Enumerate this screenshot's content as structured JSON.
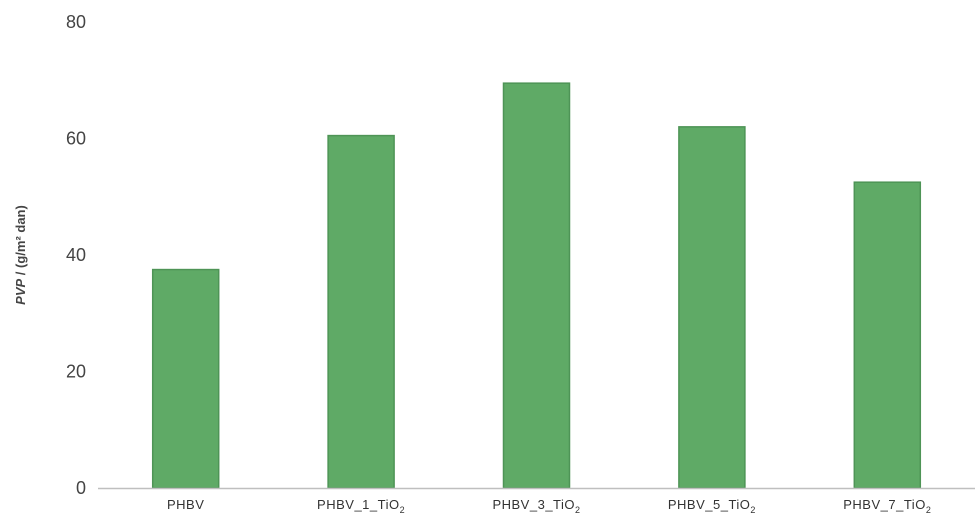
{
  "chart_data": {
    "type": "bar",
    "categories": [
      "PHBV",
      "PHBV_1_TiO2",
      "PHBV_3_TiO2",
      "PHBV_5_TiO2",
      "PHBV_7_TiO2"
    ],
    "category_labels": [
      {
        "main": "PHBV",
        "sub": ""
      },
      {
        "main": "PHBV_1_TiO",
        "sub": "2"
      },
      {
        "main": "PHBV_3_TiO",
        "sub": "2"
      },
      {
        "main": "PHBV_5_TiO",
        "sub": "2"
      },
      {
        "main": "PHBV_7_TiO",
        "sub": "2"
      }
    ],
    "values": [
      37.5,
      60.5,
      69.5,
      62.0,
      52.5
    ],
    "ylabel": {
      "italic": "PVP",
      "rest": " / (g/m² dan)"
    },
    "ylim": [
      0,
      80
    ],
    "yticks": [
      0,
      20,
      40,
      60,
      80
    ],
    "grid": false,
    "legend": "none",
    "bar_color": "#5faa66",
    "bar_edge_color": "#4e9456"
  }
}
